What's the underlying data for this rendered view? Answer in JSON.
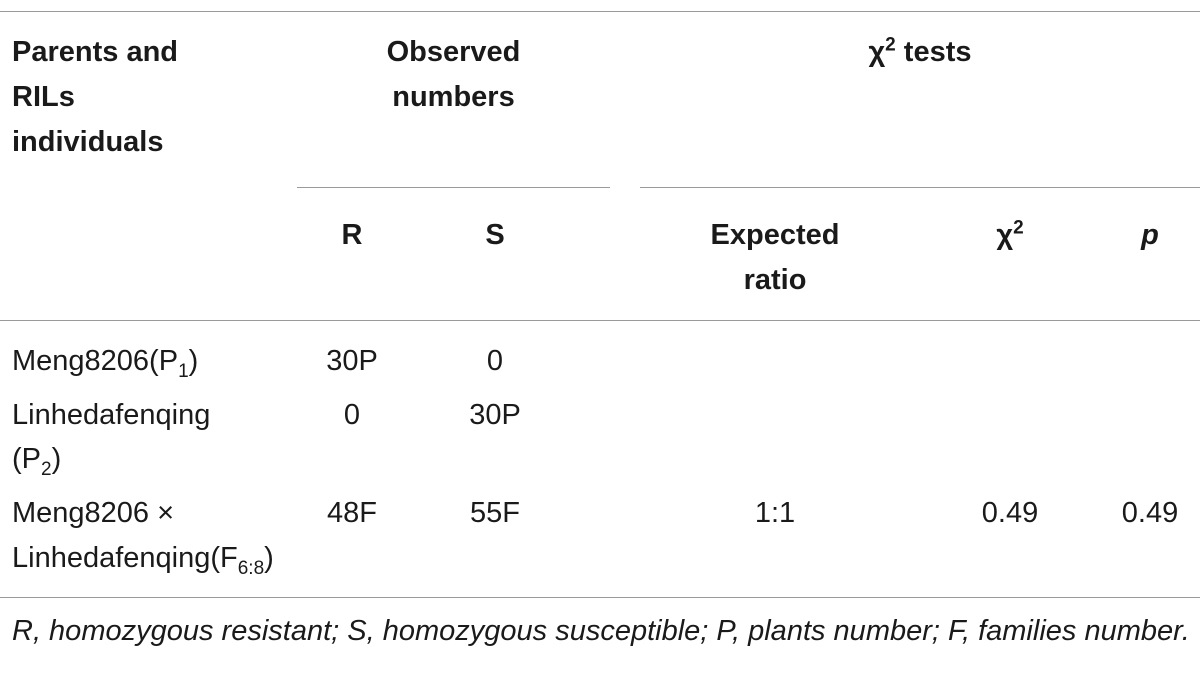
{
  "header": {
    "col1": [
      "Parents and",
      "RILs",
      "individuals"
    ],
    "observed": [
      "Observed",
      "numbers"
    ],
    "chi_tests": {
      "chi": "χ",
      "sup": "2",
      "label": " tests"
    },
    "R": "R",
    "S": "S",
    "expected": [
      "Expected",
      "ratio"
    ],
    "chi2": {
      "chi": "χ",
      "sup": "2"
    },
    "p": "p"
  },
  "rows": [
    {
      "name_main": "Meng8206(P",
      "name_sub": "1",
      "name_close": ")",
      "R": "30P",
      "S": "0",
      "ratio": "",
      "chi2": "",
      "p": ""
    },
    {
      "name_line1": "Linhedafenqing",
      "name_main": "(P",
      "name_sub": "2",
      "name_close": ")",
      "R": "0",
      "S": "30P",
      "ratio": "",
      "chi2": "",
      "p": ""
    },
    {
      "name_line1": "Meng8206 ×",
      "name_main": "Linhedafenqing(F",
      "name_sub": "6:8",
      "name_close": ")",
      "R": "48F",
      "S": "55F",
      "ratio": "1:1",
      "chi2": "0.49",
      "p": "0.49"
    }
  ],
  "footnote": "R, homozygous resistant; S, homozygous susceptible; P, plants number; F, families number."
}
